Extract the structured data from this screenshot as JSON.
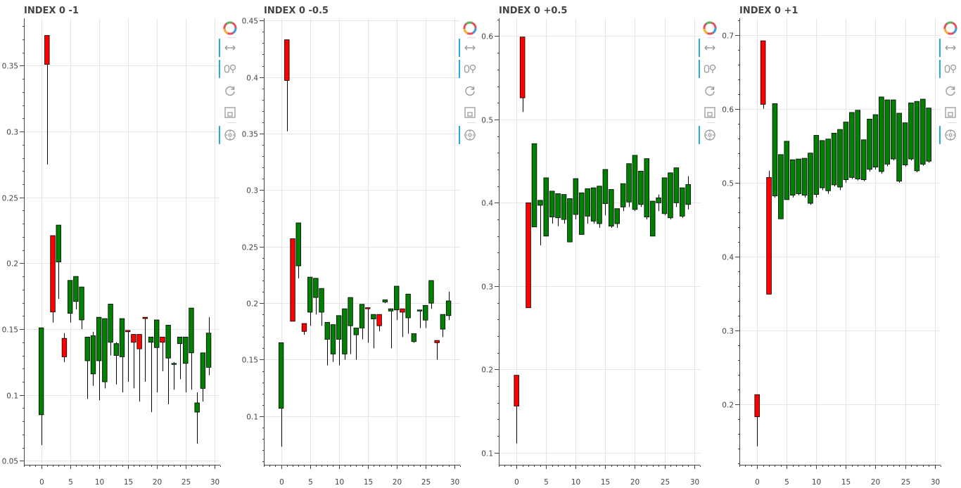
{
  "toolbar": {
    "tools": [
      {
        "name": "bokeh-logo",
        "active": false
      },
      {
        "name": "pan",
        "active": true
      },
      {
        "name": "wheel-zoom",
        "active": true
      },
      {
        "name": "reset",
        "active": false
      },
      {
        "name": "save",
        "active": false
      },
      {
        "name": "hover",
        "active": true
      }
    ]
  },
  "colors": {
    "up": "#008000",
    "down": "#ff0000",
    "wick": "#000000",
    "grid": "#e5e5e5",
    "axis": "#444444"
  },
  "chart_data": [
    {
      "type": "candlestick",
      "title": "INDEX 0 -1",
      "xlim": [
        -3.0,
        31.0
      ],
      "ylim": [
        0.047,
        0.386
      ],
      "x_ticks": [
        0,
        5,
        10,
        15,
        20,
        25,
        30
      ],
      "y_ticks": [
        0.05,
        0.1,
        0.15,
        0.2,
        0.25,
        0.3,
        0.35
      ],
      "y_tick_labels": [
        "0.05",
        "0.1",
        "0.15",
        "0.2",
        "0.25",
        "0.3",
        "0.35"
      ],
      "grid": true,
      "candles": [
        {
          "x": 0,
          "open": 0.085,
          "close": 0.151,
          "high": 0.151,
          "low": 0.062
        },
        {
          "x": 1,
          "open": 0.373,
          "close": 0.351,
          "high": 0.373,
          "low": 0.275
        },
        {
          "x": 2,
          "open": 0.221,
          "close": 0.163,
          "high": 0.221,
          "low": 0.155
        },
        {
          "x": 3,
          "open": 0.201,
          "close": 0.229,
          "high": 0.229,
          "low": 0.173
        },
        {
          "x": 4,
          "open": 0.143,
          "close": 0.129,
          "high": 0.147,
          "low": 0.125
        },
        {
          "x": 5,
          "open": 0.162,
          "close": 0.187,
          "high": 0.187,
          "low": 0.155
        },
        {
          "x": 6,
          "open": 0.171,
          "close": 0.19,
          "high": 0.19,
          "low": 0.165
        },
        {
          "x": 7,
          "open": 0.157,
          "close": 0.182,
          "high": 0.182,
          "low": 0.15
        },
        {
          "x": 8,
          "open": 0.126,
          "close": 0.144,
          "high": 0.144,
          "low": 0.097
        },
        {
          "x": 9,
          "open": 0.116,
          "close": 0.145,
          "high": 0.148,
          "low": 0.107
        },
        {
          "x": 10,
          "open": 0.126,
          "close": 0.159,
          "high": 0.159,
          "low": 0.096
        },
        {
          "x": 11,
          "open": 0.11,
          "close": 0.158,
          "high": 0.158,
          "low": 0.105
        },
        {
          "x": 12,
          "open": 0.14,
          "close": 0.169,
          "high": 0.169,
          "low": 0.13
        },
        {
          "x": 13,
          "open": 0.13,
          "close": 0.139,
          "high": 0.14,
          "low": 0.108
        },
        {
          "x": 14,
          "open": 0.129,
          "close": 0.158,
          "high": 0.158,
          "low": 0.102
        },
        {
          "x": 15,
          "open": 0.149,
          "close": 0.148,
          "high": 0.149,
          "low": 0.11
        },
        {
          "x": 16,
          "open": 0.146,
          "close": 0.14,
          "high": 0.146,
          "low": 0.105
        },
        {
          "x": 17,
          "open": 0.146,
          "close": 0.135,
          "high": 0.146,
          "low": 0.095
        },
        {
          "x": 18,
          "open": 0.159,
          "close": 0.158,
          "high": 0.159,
          "low": 0.11
        },
        {
          "x": 19,
          "open": 0.14,
          "close": 0.144,
          "high": 0.144,
          "low": 0.087
        },
        {
          "x": 20,
          "open": 0.136,
          "close": 0.157,
          "high": 0.157,
          "low": 0.102
        },
        {
          "x": 21,
          "open": 0.144,
          "close": 0.14,
          "high": 0.144,
          "low": 0.118
        },
        {
          "x": 22,
          "open": 0.128,
          "close": 0.153,
          "high": 0.153,
          "low": 0.093
        },
        {
          "x": 23,
          "open": 0.124,
          "close": 0.124,
          "high": 0.125,
          "low": 0.104
        },
        {
          "x": 24,
          "open": 0.139,
          "close": 0.144,
          "high": 0.144,
          "low": 0.112
        },
        {
          "x": 25,
          "open": 0.124,
          "close": 0.144,
          "high": 0.144,
          "low": 0.102
        },
        {
          "x": 26,
          "open": 0.132,
          "close": 0.166,
          "high": 0.166,
          "low": 0.104
        },
        {
          "x": 27,
          "open": 0.087,
          "close": 0.094,
          "high": 0.102,
          "low": 0.063
        },
        {
          "x": 28,
          "open": 0.105,
          "close": 0.132,
          "high": 0.132,
          "low": 0.095
        },
        {
          "x": 29,
          "open": 0.121,
          "close": 0.147,
          "high": 0.159,
          "low": 0.115
        }
      ]
    },
    {
      "type": "candlestick",
      "title": "INDEX 0 -0.5",
      "xlim": [
        -3.0,
        31.0
      ],
      "ylim": [
        0.057,
        0.452
      ],
      "x_ticks": [
        0,
        5,
        10,
        15,
        20,
        25,
        30
      ],
      "y_ticks": [
        0.1,
        0.15,
        0.2,
        0.25,
        0.3,
        0.35,
        0.4,
        0.45
      ],
      "y_tick_labels": [
        "0.1",
        "0.15",
        "0.2",
        "0.25",
        "0.3",
        "0.35",
        "0.4",
        "0.45"
      ],
      "grid": true,
      "candles": [
        {
          "x": 0,
          "open": 0.107,
          "close": 0.165,
          "high": 0.165,
          "low": 0.073
        },
        {
          "x": 1,
          "open": 0.433,
          "close": 0.397,
          "high": 0.433,
          "low": 0.352
        },
        {
          "x": 2,
          "open": 0.257,
          "close": 0.184,
          "high": 0.257,
          "low": 0.184
        },
        {
          "x": 3,
          "open": 0.233,
          "close": 0.271,
          "high": 0.271,
          "low": 0.222
        },
        {
          "x": 4,
          "open": 0.182,
          "close": 0.175,
          "high": 0.182,
          "low": 0.172
        },
        {
          "x": 5,
          "open": 0.192,
          "close": 0.223,
          "high": 0.223,
          "low": 0.18
        },
        {
          "x": 6,
          "open": 0.205,
          "close": 0.222,
          "high": 0.222,
          "low": 0.19
        },
        {
          "x": 7,
          "open": 0.192,
          "close": 0.213,
          "high": 0.213,
          "low": 0.18
        },
        {
          "x": 8,
          "open": 0.168,
          "close": 0.183,
          "high": 0.183,
          "low": 0.145
        },
        {
          "x": 9,
          "open": 0.155,
          "close": 0.181,
          "high": 0.181,
          "low": 0.148
        },
        {
          "x": 10,
          "open": 0.168,
          "close": 0.189,
          "high": 0.189,
          "low": 0.145
        },
        {
          "x": 11,
          "open": 0.155,
          "close": 0.195,
          "high": 0.195,
          "low": 0.15
        },
        {
          "x": 12,
          "open": 0.18,
          "close": 0.205,
          "high": 0.205,
          "low": 0.155
        },
        {
          "x": 13,
          "open": 0.172,
          "close": 0.178,
          "high": 0.178,
          "low": 0.15
        },
        {
          "x": 14,
          "open": 0.178,
          "close": 0.199,
          "high": 0.199,
          "low": 0.168
        },
        {
          "x": 15,
          "open": 0.196,
          "close": 0.195,
          "high": 0.196,
          "low": 0.165
        },
        {
          "x": 16,
          "open": 0.186,
          "close": 0.19,
          "high": 0.19,
          "low": 0.16
        },
        {
          "x": 17,
          "open": 0.19,
          "close": 0.18,
          "high": 0.19,
          "low": 0.175
        },
        {
          "x": 18,
          "open": 0.201,
          "close": 0.203,
          "high": 0.203,
          "low": 0.2
        },
        {
          "x": 19,
          "open": 0.193,
          "close": 0.195,
          "high": 0.195,
          "low": 0.16
        },
        {
          "x": 20,
          "open": 0.194,
          "close": 0.215,
          "high": 0.215,
          "low": 0.185
        },
        {
          "x": 21,
          "open": 0.195,
          "close": 0.192,
          "high": 0.195,
          "low": 0.17
        },
        {
          "x": 22,
          "open": 0.187,
          "close": 0.208,
          "high": 0.208,
          "low": 0.173
        },
        {
          "x": 23,
          "open": 0.166,
          "close": 0.173,
          "high": 0.173,
          "low": 0.165
        },
        {
          "x": 24,
          "open": 0.193,
          "close": 0.194,
          "high": 0.194,
          "low": 0.178
        },
        {
          "x": 25,
          "open": 0.185,
          "close": 0.198,
          "high": 0.198,
          "low": 0.178
        },
        {
          "x": 26,
          "open": 0.2,
          "close": 0.22,
          "high": 0.22,
          "low": 0.195
        },
        {
          "x": 27,
          "open": 0.167,
          "close": 0.165,
          "high": 0.167,
          "low": 0.15
        },
        {
          "x": 28,
          "open": 0.177,
          "close": 0.19,
          "high": 0.19,
          "low": 0.17
        },
        {
          "x": 29,
          "open": 0.189,
          "close": 0.202,
          "high": 0.21,
          "low": 0.185
        }
      ]
    },
    {
      "type": "candlestick",
      "title": "INDEX 0 +0.5",
      "xlim": [
        -3.0,
        31.0
      ],
      "ylim": [
        0.0855,
        0.6215
      ],
      "x_ticks": [
        0,
        5,
        10,
        15,
        20,
        25,
        30
      ],
      "y_ticks": [
        0.1,
        0.2,
        0.3,
        0.4,
        0.5,
        0.6
      ],
      "y_tick_labels": [
        "0.1",
        "0.2",
        "0.3",
        "0.4",
        "0.5",
        "0.6"
      ],
      "grid": true,
      "candles": [
        {
          "x": 0,
          "open": 0.193,
          "close": 0.156,
          "high": 0.193,
          "low": 0.111
        },
        {
          "x": 1,
          "open": 0.599,
          "close": 0.526,
          "high": 0.599,
          "low": 0.509
        },
        {
          "x": 2,
          "open": 0.4,
          "close": 0.274,
          "high": 0.4,
          "low": 0.274
        },
        {
          "x": 3,
          "open": 0.371,
          "close": 0.471,
          "high": 0.471,
          "low": 0.371
        },
        {
          "x": 4,
          "open": 0.397,
          "close": 0.403,
          "high": 0.403,
          "low": 0.349
        },
        {
          "x": 5,
          "open": 0.36,
          "close": 0.43,
          "high": 0.43,
          "low": 0.36
        },
        {
          "x": 6,
          "open": 0.383,
          "close": 0.414,
          "high": 0.414,
          "low": 0.375
        },
        {
          "x": 7,
          "open": 0.382,
          "close": 0.411,
          "high": 0.411,
          "low": 0.372
        },
        {
          "x": 8,
          "open": 0.38,
          "close": 0.41,
          "high": 0.41,
          "low": 0.375
        },
        {
          "x": 9,
          "open": 0.353,
          "close": 0.405,
          "high": 0.405,
          "low": 0.353
        },
        {
          "x": 10,
          "open": 0.386,
          "close": 0.429,
          "high": 0.429,
          "low": 0.38
        },
        {
          "x": 11,
          "open": 0.362,
          "close": 0.412,
          "high": 0.412,
          "low": 0.362
        },
        {
          "x": 12,
          "open": 0.384,
          "close": 0.417,
          "high": 0.417,
          "low": 0.375
        },
        {
          "x": 13,
          "open": 0.378,
          "close": 0.418,
          "high": 0.418,
          "low": 0.375
        },
        {
          "x": 14,
          "open": 0.375,
          "close": 0.42,
          "high": 0.42,
          "low": 0.37
        },
        {
          "x": 15,
          "open": 0.399,
          "close": 0.44,
          "high": 0.44,
          "low": 0.385
        },
        {
          "x": 16,
          "open": 0.372,
          "close": 0.416,
          "high": 0.416,
          "low": 0.37
        },
        {
          "x": 17,
          "open": 0.375,
          "close": 0.393,
          "high": 0.393,
          "low": 0.37
        },
        {
          "x": 18,
          "open": 0.395,
          "close": 0.423,
          "high": 0.423,
          "low": 0.39
        },
        {
          "x": 19,
          "open": 0.401,
          "close": 0.447,
          "high": 0.447,
          "low": 0.395
        },
        {
          "x": 20,
          "open": 0.392,
          "close": 0.457,
          "high": 0.457,
          "low": 0.39
        },
        {
          "x": 21,
          "open": 0.398,
          "close": 0.438,
          "high": 0.438,
          "low": 0.395
        },
        {
          "x": 22,
          "open": 0.383,
          "close": 0.453,
          "high": 0.453,
          "low": 0.38
        },
        {
          "x": 23,
          "open": 0.36,
          "close": 0.402,
          "high": 0.402,
          "low": 0.36
        },
        {
          "x": 24,
          "open": 0.4,
          "close": 0.406,
          "high": 0.41,
          "low": 0.39
        },
        {
          "x": 25,
          "open": 0.387,
          "close": 0.43,
          "high": 0.43,
          "low": 0.385
        },
        {
          "x": 26,
          "open": 0.382,
          "close": 0.436,
          "high": 0.436,
          "low": 0.38
        },
        {
          "x": 27,
          "open": 0.4,
          "close": 0.442,
          "high": 0.442,
          "low": 0.395
        },
        {
          "x": 28,
          "open": 0.384,
          "close": 0.418,
          "high": 0.418,
          "low": 0.382
        },
        {
          "x": 29,
          "open": 0.398,
          "close": 0.422,
          "high": 0.432,
          "low": 0.392
        }
      ]
    },
    {
      "type": "candlestick",
      "title": "INDEX 0 +1",
      "xlim": [
        -3.0,
        31.0
      ],
      "ylim": [
        0.118,
        0.7225
      ],
      "x_ticks": [
        0,
        5,
        10,
        15,
        20,
        25,
        30
      ],
      "y_ticks": [
        0.2,
        0.3,
        0.4,
        0.5,
        0.6,
        0.7
      ],
      "y_tick_labels": [
        "0.2",
        "0.3",
        "0.4",
        "0.5",
        "0.6",
        "0.7"
      ],
      "grid": true,
      "candles": [
        {
          "x": 0,
          "open": 0.213,
          "close": 0.183,
          "high": 0.213,
          "low": 0.143
        },
        {
          "x": 1,
          "open": 0.692,
          "close": 0.606,
          "high": 0.692,
          "low": 0.6
        },
        {
          "x": 2,
          "open": 0.507,
          "close": 0.349,
          "high": 0.516,
          "low": 0.349
        },
        {
          "x": 3,
          "open": 0.482,
          "close": 0.607,
          "high": 0.607,
          "low": 0.48
        },
        {
          "x": 4,
          "open": 0.451,
          "close": 0.538,
          "high": 0.538,
          "low": 0.451
        },
        {
          "x": 5,
          "open": 0.477,
          "close": 0.556,
          "high": 0.556,
          "low": 0.477
        },
        {
          "x": 6,
          "open": 0.483,
          "close": 0.531,
          "high": 0.531,
          "low": 0.48
        },
        {
          "x": 7,
          "open": 0.485,
          "close": 0.532,
          "high": 0.532,
          "low": 0.483
        },
        {
          "x": 8,
          "open": 0.483,
          "close": 0.533,
          "high": 0.533,
          "low": 0.48
        },
        {
          "x": 9,
          "open": 0.472,
          "close": 0.54,
          "high": 0.54,
          "low": 0.47
        },
        {
          "x": 10,
          "open": 0.484,
          "close": 0.564,
          "high": 0.564,
          "low": 0.48
        },
        {
          "x": 11,
          "open": 0.493,
          "close": 0.557,
          "high": 0.557,
          "low": 0.49
        },
        {
          "x": 12,
          "open": 0.489,
          "close": 0.559,
          "high": 0.559,
          "low": 0.485
        },
        {
          "x": 13,
          "open": 0.497,
          "close": 0.567,
          "high": 0.567,
          "low": 0.495
        },
        {
          "x": 14,
          "open": 0.494,
          "close": 0.572,
          "high": 0.572,
          "low": 0.49
        },
        {
          "x": 15,
          "open": 0.504,
          "close": 0.582,
          "high": 0.582,
          "low": 0.5
        },
        {
          "x": 16,
          "open": 0.507,
          "close": 0.595,
          "high": 0.595,
          "low": 0.505
        },
        {
          "x": 17,
          "open": 0.505,
          "close": 0.598,
          "high": 0.598,
          "low": 0.503
        },
        {
          "x": 18,
          "open": 0.504,
          "close": 0.558,
          "high": 0.558,
          "low": 0.502
        },
        {
          "x": 19,
          "open": 0.518,
          "close": 0.586,
          "high": 0.586,
          "low": 0.515
        },
        {
          "x": 20,
          "open": 0.521,
          "close": 0.592,
          "high": 0.592,
          "low": 0.518
        },
        {
          "x": 21,
          "open": 0.515,
          "close": 0.616,
          "high": 0.616,
          "low": 0.512
        },
        {
          "x": 22,
          "open": 0.525,
          "close": 0.612,
          "high": 0.612,
          "low": 0.522
        },
        {
          "x": 23,
          "open": 0.532,
          "close": 0.612,
          "high": 0.612,
          "low": 0.53
        },
        {
          "x": 24,
          "open": 0.502,
          "close": 0.594,
          "high": 0.594,
          "low": 0.5
        },
        {
          "x": 25,
          "open": 0.524,
          "close": 0.581,
          "high": 0.581,
          "low": 0.522
        },
        {
          "x": 26,
          "open": 0.532,
          "close": 0.608,
          "high": 0.608,
          "low": 0.53
        },
        {
          "x": 27,
          "open": 0.516,
          "close": 0.61,
          "high": 0.61,
          "low": 0.514
        },
        {
          "x": 28,
          "open": 0.525,
          "close": 0.613,
          "high": 0.613,
          "low": 0.523
        },
        {
          "x": 29,
          "open": 0.529,
          "close": 0.601,
          "high": 0.601,
          "low": 0.527
        }
      ]
    }
  ]
}
